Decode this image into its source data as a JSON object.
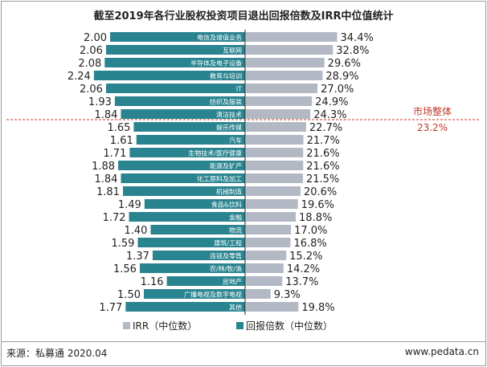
{
  "chart_data": {
    "type": "bar",
    "title": "截至2019年各行业股权投资项目退出回报倍数及IRR中位值统计",
    "categories": [
      "电信及增值业务",
      "互联网",
      "半导体及电子设备",
      "教育与培训",
      "IT",
      "纺织及服装",
      "清洁技术",
      "娱乐传媒",
      "汽车",
      "生物技术/医疗健康",
      "能源及矿产",
      "化工原料及加工",
      "机械制造",
      "食品&饮料",
      "金融",
      "物流",
      "建筑/工程",
      "连锁及零售",
      "农/林/牧/渔",
      "房地产",
      "广播电视及数字电视",
      "其他"
    ],
    "series": [
      {
        "name": "回报倍数（中位数）",
        "color": "#2a8490",
        "direction": "left",
        "values": [
          2.0,
          2.06,
          2.08,
          2.24,
          2.06,
          1.93,
          1.84,
          1.65,
          1.61,
          1.71,
          1.88,
          1.84,
          1.81,
          1.49,
          1.72,
          1.4,
          1.59,
          1.37,
          1.56,
          1.16,
          1.5,
          1.77
        ],
        "labels": [
          "2.00",
          "2.06",
          "2.08",
          "2.24",
          "2.06",
          "1.93",
          "1.84",
          "1.65",
          "1.61",
          "1.71",
          "1.88",
          "1.84",
          "1.81",
          "1.49",
          "1.72",
          "1.40",
          "1.59",
          "1.37",
          "1.56",
          "1.16",
          "1.50",
          "1.77"
        ]
      },
      {
        "name": "IRR（中位数）",
        "color": "#b3b9c4",
        "direction": "right",
        "values": [
          34.4,
          32.8,
          29.6,
          28.9,
          27.0,
          24.9,
          24.3,
          22.7,
          21.7,
          21.6,
          21.6,
          21.5,
          20.6,
          19.6,
          18.8,
          17.0,
          16.8,
          15.2,
          14.2,
          13.7,
          9.3,
          19.8
        ],
        "labels": [
          "34.4%",
          "32.8%",
          "29.6%",
          "28.9%",
          "27.0%",
          "24.9%",
          "24.3%",
          "22.7%",
          "21.7%",
          "21.6%",
          "21.6%",
          "21.5%",
          "20.6%",
          "19.6%",
          "18.8%",
          "17.0%",
          "16.8%",
          "15.2%",
          "14.2%",
          "13.7%",
          "9.3%",
          "19.8%"
        ]
      }
    ],
    "reference_line": {
      "label": "市场整体",
      "value": "23.2%",
      "color": "#c0392b"
    },
    "legend": {
      "position": "bottom",
      "items": [
        "IRR（中位数）",
        "回报倍数（中位数）"
      ]
    }
  },
  "footer": {
    "source": "来源：私募通 2020.04",
    "site": "www.pedata.cn"
  }
}
